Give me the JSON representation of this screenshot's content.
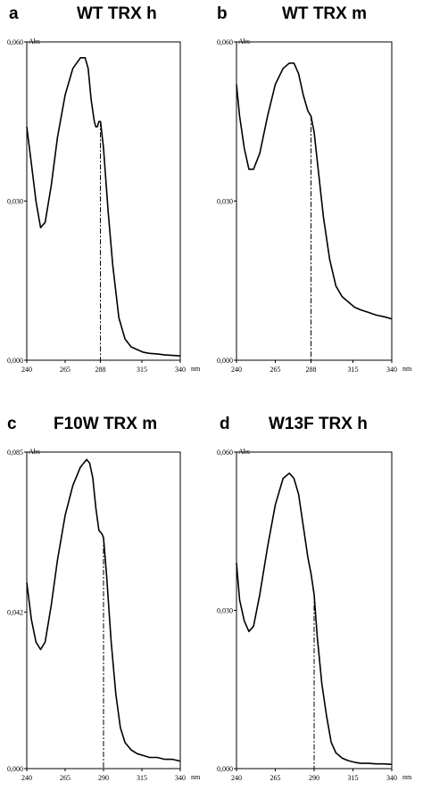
{
  "chart_data": [
    {
      "type": "line",
      "panel_letter": "a",
      "title": "WT TRX h",
      "ylabel": "Abs",
      "xunit": "nm",
      "xlim": [
        240,
        340
      ],
      "ylim": [
        0,
        0.06
      ],
      "xticks": [
        240,
        265,
        288,
        315,
        340
      ],
      "xtick_labels": [
        "240",
        "265",
        "288",
        "315",
        "340"
      ],
      "yticks": [
        0,
        0.03,
        0.06
      ],
      "ytick_labels": [
        "0,000",
        "0,030",
        "0,060"
      ],
      "ytick_top_label": "0,060",
      "marker_x": 288,
      "series": [
        {
          "x": [
            240,
            243,
            246,
            249,
            252,
            256,
            260,
            265,
            270,
            275,
            278,
            280,
            282,
            284,
            285,
            286,
            287,
            288,
            290,
            293,
            296,
            300,
            304,
            308,
            312,
            316,
            320,
            325,
            330,
            335,
            340
          ],
          "y": [
            0.044,
            0.037,
            0.03,
            0.025,
            0.026,
            0.033,
            0.042,
            0.05,
            0.055,
            0.057,
            0.057,
            0.055,
            0.049,
            0.045,
            0.044,
            0.044,
            0.045,
            0.045,
            0.04,
            0.028,
            0.018,
            0.008,
            0.004,
            0.0025,
            0.002,
            0.0015,
            0.0013,
            0.0012,
            0.001,
            0.0009,
            0.0008
          ]
        }
      ]
    },
    {
      "type": "line",
      "panel_letter": "b",
      "title": "WT TRX m",
      "ylabel": "Abs",
      "xunit": "nm",
      "xlim": [
        240,
        340
      ],
      "ylim": [
        0,
        0.06
      ],
      "xticks": [
        240,
        265,
        288,
        315,
        340
      ],
      "xtick_labels": [
        "240",
        "265",
        "288",
        "315",
        "340"
      ],
      "yticks": [
        0,
        0.03,
        0.06
      ],
      "ytick_labels": [
        "0,000",
        "0,030",
        "0,060"
      ],
      "ytick_top_label": "0,060",
      "marker_x": 288,
      "series": [
        {
          "x": [
            240,
            242,
            245,
            248,
            251,
            255,
            260,
            265,
            270,
            274,
            277,
            280,
            283,
            286,
            288,
            290,
            293,
            296,
            300,
            304,
            308,
            312,
            316,
            320,
            325,
            330,
            335,
            340
          ],
          "y": [
            0.052,
            0.046,
            0.04,
            0.036,
            0.036,
            0.039,
            0.046,
            0.052,
            0.055,
            0.056,
            0.056,
            0.054,
            0.05,
            0.047,
            0.046,
            0.043,
            0.035,
            0.027,
            0.019,
            0.014,
            0.012,
            0.011,
            0.01,
            0.0095,
            0.009,
            0.0085,
            0.0082,
            0.0078
          ]
        }
      ]
    },
    {
      "type": "line",
      "panel_letter": "c",
      "title": "F10W TRX m",
      "ylabel": "Abs",
      "xunit": "nm",
      "xlim": [
        240,
        340
      ],
      "ylim": [
        0,
        0.085
      ],
      "xticks": [
        240,
        265,
        290,
        315,
        340
      ],
      "xtick_labels": [
        "240",
        "265",
        "290",
        "315",
        "340"
      ],
      "yticks": [
        0,
        0.042,
        0.085
      ],
      "ytick_labels": [
        "0,000",
        "0,042",
        "0,085"
      ],
      "ytick_top_label": "0,085",
      "marker_x": 290,
      "series": [
        {
          "x": [
            240,
            243,
            246,
            249,
            252,
            256,
            260,
            265,
            270,
            275,
            279,
            281,
            283,
            285,
            287,
            289,
            290,
            292,
            295,
            298,
            301,
            304,
            308,
            312,
            316,
            320,
            325,
            330,
            335,
            340
          ],
          "y": [
            0.05,
            0.04,
            0.034,
            0.032,
            0.034,
            0.044,
            0.056,
            0.068,
            0.076,
            0.081,
            0.083,
            0.082,
            0.078,
            0.07,
            0.064,
            0.063,
            0.062,
            0.052,
            0.034,
            0.02,
            0.011,
            0.007,
            0.005,
            0.004,
            0.0035,
            0.003,
            0.003,
            0.0025,
            0.0025,
            0.002
          ]
        }
      ]
    },
    {
      "type": "line",
      "panel_letter": "d",
      "title": "W13F TRX h",
      "ylabel": "Abs",
      "xunit": "nm",
      "xlim": [
        240,
        340
      ],
      "ylim": [
        0,
        0.06
      ],
      "xticks": [
        240,
        265,
        290,
        315,
        340
      ],
      "xtick_labels": [
        "240",
        "265",
        "290",
        "315",
        "340"
      ],
      "yticks": [
        0,
        0.03,
        0.06
      ],
      "ytick_labels": [
        "0,000",
        "0,030",
        "0,060"
      ],
      "ytick_top_label": "0,060",
      "marker_x": 290,
      "series": [
        {
          "x": [
            240,
            242,
            245,
            248,
            251,
            255,
            260,
            265,
            270,
            274,
            277,
            280,
            283,
            286,
            288,
            290,
            292,
            295,
            298,
            301,
            304,
            308,
            312,
            316,
            320,
            325,
            330,
            335,
            340
          ],
          "y": [
            0.039,
            0.032,
            0.028,
            0.026,
            0.027,
            0.033,
            0.042,
            0.05,
            0.055,
            0.056,
            0.055,
            0.052,
            0.046,
            0.04,
            0.037,
            0.033,
            0.025,
            0.016,
            0.01,
            0.005,
            0.003,
            0.002,
            0.0015,
            0.0012,
            0.001,
            0.001,
            0.0009,
            0.0009,
            0.0008
          ]
        }
      ]
    }
  ]
}
